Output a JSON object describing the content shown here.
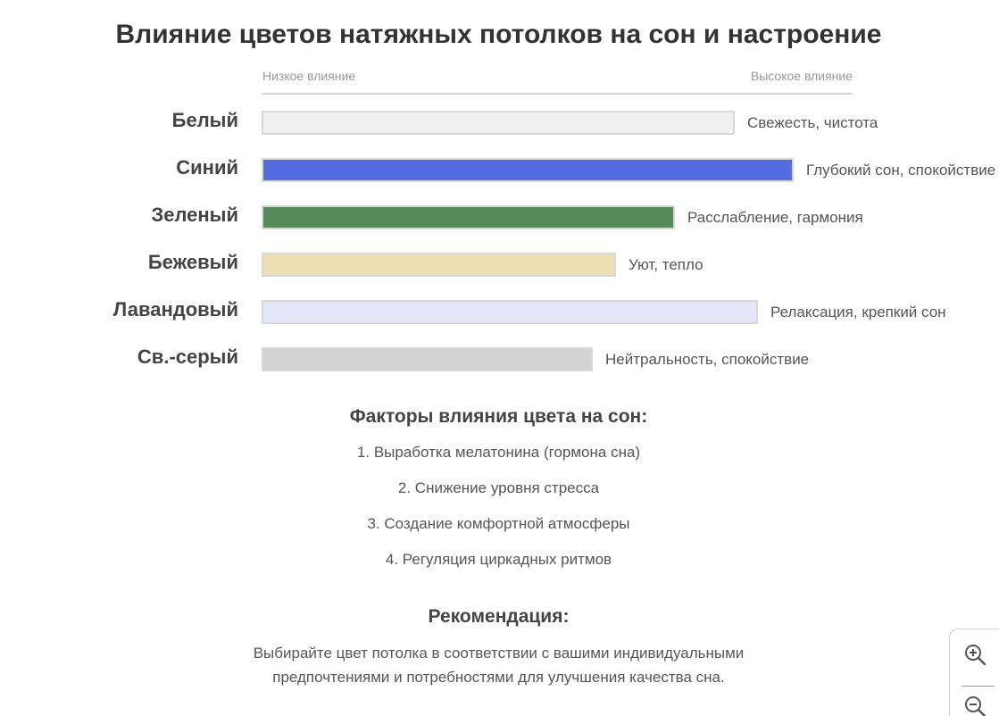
{
  "title": "Влияние цветов натяжных потолков на сон и настроение",
  "chart_data": {
    "type": "bar",
    "orientation": "horizontal",
    "axis_low_label": "Низкое влияние",
    "axis_high_label": "Высокое влияние",
    "xlim": [
      0,
      100
    ],
    "categories": [
      "Белый",
      "Синий",
      "Зеленый",
      "Бежевый",
      "Лавандовый",
      "Св.-серый"
    ],
    "values": [
      80,
      90,
      70,
      60,
      84,
      56
    ],
    "colors": [
      "#f0f0f0",
      "#556ce0",
      "#578a5a",
      "#eedfb2",
      "#e6e6fa",
      "#d3d3d3"
    ],
    "annotations": [
      "Свежесть, чистота",
      "Глубокий сон, спокойствие",
      "Расслабление, гармония",
      "Уют, тепло",
      "Релаксация, крепкий сон",
      "Нейтральность, спокойствие"
    ]
  },
  "factors": {
    "heading": "Факторы влияния цвета на сон:",
    "items": [
      "1. Выработка мелатонина (гормона сна)",
      "2. Снижение уровня стресса",
      "3. Создание комфортной атмосферы",
      "4. Регуляция циркадных ритмов"
    ]
  },
  "recommendation": {
    "heading": "Рекомендация:",
    "lines": [
      "Выбирайте цвет потолка в соответствии с вашими индивидуальными",
      "предпочтениями и потребностями для улучшения качества сна."
    ]
  },
  "zoom_controls": {
    "zoom_in_icon": "zoom-in-icon",
    "zoom_out_icon": "zoom-out-icon"
  }
}
